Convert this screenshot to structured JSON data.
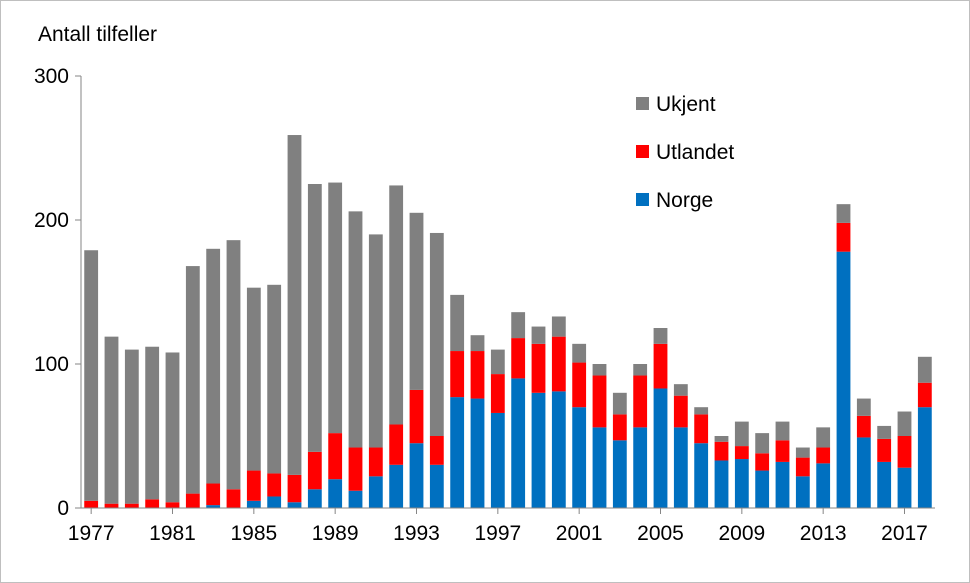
{
  "chart_data": {
    "type": "bar",
    "stacked": true,
    "ylabel": "Antall tilfeller",
    "ylim": [
      0,
      300
    ],
    "yticks": [
      0,
      100,
      200,
      300
    ],
    "x_tick_labels": [
      "1977",
      "1981",
      "1985",
      "1989",
      "1993",
      "1997",
      "2001",
      "2005",
      "2009",
      "2013",
      "2017"
    ],
    "categories": [
      "1977",
      "1978",
      "1979",
      "1980",
      "1981",
      "1982",
      "1983",
      "1984",
      "1985",
      "1986",
      "1987",
      "1988",
      "1989",
      "1990",
      "1991",
      "1992",
      "1993",
      "1994",
      "1995",
      "1996",
      "1997",
      "1998",
      "1999",
      "2000",
      "2001",
      "2002",
      "2003",
      "2004",
      "2005",
      "2006",
      "2007",
      "2008",
      "2009",
      "2010",
      "2011",
      "2012",
      "2013",
      "2014",
      "2015",
      "2016",
      "2017",
      "2018"
    ],
    "series": [
      {
        "name": "Norge",
        "color": "#0070C0",
        "values": [
          0,
          0,
          0,
          0,
          0,
          0,
          2,
          0,
          5,
          8,
          4,
          13,
          20,
          12,
          22,
          30,
          45,
          30,
          77,
          76,
          66,
          90,
          80,
          81,
          70,
          56,
          47,
          56,
          83,
          56,
          45,
          33,
          34,
          26,
          32,
          22,
          31,
          178,
          49,
          32,
          28,
          70
        ]
      },
      {
        "name": "Utlandet",
        "color": "#FF0000",
        "values": [
          5,
          3,
          3,
          6,
          4,
          10,
          15,
          13,
          21,
          16,
          19,
          26,
          32,
          30,
          20,
          28,
          37,
          20,
          32,
          33,
          27,
          28,
          34,
          38,
          31,
          36,
          18,
          36,
          31,
          22,
          20,
          13,
          9,
          12,
          15,
          13,
          11,
          20,
          15,
          16,
          22,
          17
        ]
      },
      {
        "name": "Ukjent",
        "color": "#808080",
        "values": [
          174,
          116,
          107,
          106,
          104,
          158,
          163,
          173,
          127,
          131,
          236,
          186,
          174,
          164,
          148,
          166,
          123,
          141,
          39,
          11,
          17,
          18,
          12,
          14,
          13,
          8,
          15,
          8,
          11,
          8,
          5,
          4,
          17,
          14,
          13,
          7,
          14,
          13,
          12,
          9,
          17,
          18
        ]
      }
    ],
    "legend": {
      "placement": "top-right",
      "order": [
        "Ukjent",
        "Utlandet",
        "Norge"
      ]
    },
    "grid": false
  }
}
